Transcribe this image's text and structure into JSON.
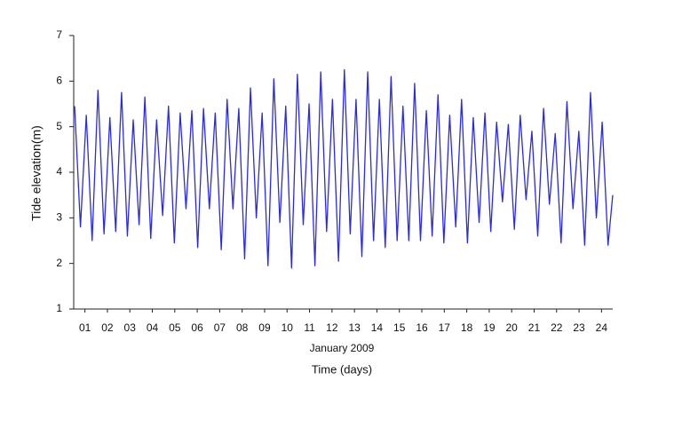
{
  "chart_data": {
    "type": "line",
    "y_label": "Tide elevation(m)",
    "x_label": "Time (days)",
    "x_sublabel": "January 2009",
    "xlim": [
      1,
      25
    ],
    "ylim": [
      1,
      7
    ],
    "yticks": [
      1,
      2,
      3,
      4,
      5,
      6,
      7
    ],
    "xticks": [
      {
        "value": 1.5,
        "label": "01"
      },
      {
        "value": 2.5,
        "label": "02"
      },
      {
        "value": 3.5,
        "label": "03"
      },
      {
        "value": 4.5,
        "label": "04"
      },
      {
        "value": 5.5,
        "label": "05"
      },
      {
        "value": 6.5,
        "label": "06"
      },
      {
        "value": 7.5,
        "label": "07"
      },
      {
        "value": 8.5,
        "label": "08"
      },
      {
        "value": 9.5,
        "label": "09"
      },
      {
        "value": 10.5,
        "label": "10"
      },
      {
        "value": 11.5,
        "label": "11"
      },
      {
        "value": 12.5,
        "label": "12"
      },
      {
        "value": 13.5,
        "label": "13"
      },
      {
        "value": 14.5,
        "label": "14"
      },
      {
        "value": 15.5,
        "label": "15"
      },
      {
        "value": 16.5,
        "label": "16"
      },
      {
        "value": 17.5,
        "label": "17"
      },
      {
        "value": 18.5,
        "label": "18"
      },
      {
        "value": 19.5,
        "label": "19"
      },
      {
        "value": 20.5,
        "label": "20"
      },
      {
        "value": 21.5,
        "label": "21"
      },
      {
        "value": 22.5,
        "label": "22"
      },
      {
        "value": 23.5,
        "label": "23"
      },
      {
        "value": 24.5,
        "label": "24"
      }
    ],
    "x": [
      1.04,
      1.3,
      1.56,
      1.82,
      2.08,
      2.35,
      2.61,
      2.87,
      3.13,
      3.39,
      3.65,
      3.91,
      4.17,
      4.43,
      4.69,
      4.96,
      5.22,
      5.48,
      5.74,
      6.0,
      6.26,
      6.52,
      6.78,
      7.04,
      7.3,
      7.57,
      7.83,
      8.09,
      8.35,
      8.61,
      8.87,
      9.13,
      9.39,
      9.65,
      9.91,
      10.18,
      10.44,
      10.7,
      10.96,
      11.22,
      11.48,
      11.74,
      12.0,
      12.26,
      12.52,
      12.79,
      13.05,
      13.31,
      13.57,
      13.83,
      14.09,
      14.35,
      14.61,
      14.87,
      15.13,
      15.4,
      15.66,
      15.92,
      16.18,
      16.44,
      16.7,
      16.96,
      17.22,
      17.48,
      17.74,
      18.01,
      18.27,
      18.53,
      18.79,
      19.05,
      19.31,
      19.57,
      19.83,
      20.09,
      20.35,
      20.62,
      20.88,
      21.14,
      21.4,
      21.66,
      21.92,
      22.18,
      22.44,
      22.7,
      22.96,
      23.23,
      23.49,
      23.75,
      24.01,
      24.27,
      24.53,
      24.79,
      25.0
    ],
    "series": [
      {
        "color": "#2a2ae6",
        "values": [
          5.45,
          2.8,
          5.25,
          2.5,
          5.8,
          2.65,
          5.2,
          2.7,
          5.75,
          2.6,
          5.15,
          2.85,
          5.65,
          2.55,
          5.15,
          3.05,
          5.45,
          2.45,
          5.3,
          3.2,
          5.35,
          2.35,
          5.4,
          3.2,
          5.3,
          2.3,
          5.6,
          3.2,
          5.4,
          2.1,
          5.85,
          3.0,
          5.3,
          1.95,
          6.05,
          2.9,
          5.45,
          1.9,
          6.15,
          2.85,
          5.5,
          1.95,
          6.2,
          2.7,
          5.6,
          2.05,
          6.25,
          2.65,
          5.6,
          2.15,
          6.2,
          2.5,
          5.6,
          2.35,
          6.1,
          2.5,
          5.45,
          2.5,
          5.95,
          2.5,
          5.35,
          2.6,
          5.7,
          2.45,
          5.25,
          2.8,
          5.6,
          2.45,
          5.2,
          2.9,
          5.3,
          2.7,
          5.1,
          3.35,
          5.05,
          2.75,
          5.25,
          3.4,
          4.9,
          2.6,
          5.4,
          3.3,
          4.85,
          2.45,
          5.55,
          3.2,
          4.9,
          2.4,
          5.75,
          3.0,
          5.1,
          2.4,
          3.5
        ]
      }
    ]
  }
}
